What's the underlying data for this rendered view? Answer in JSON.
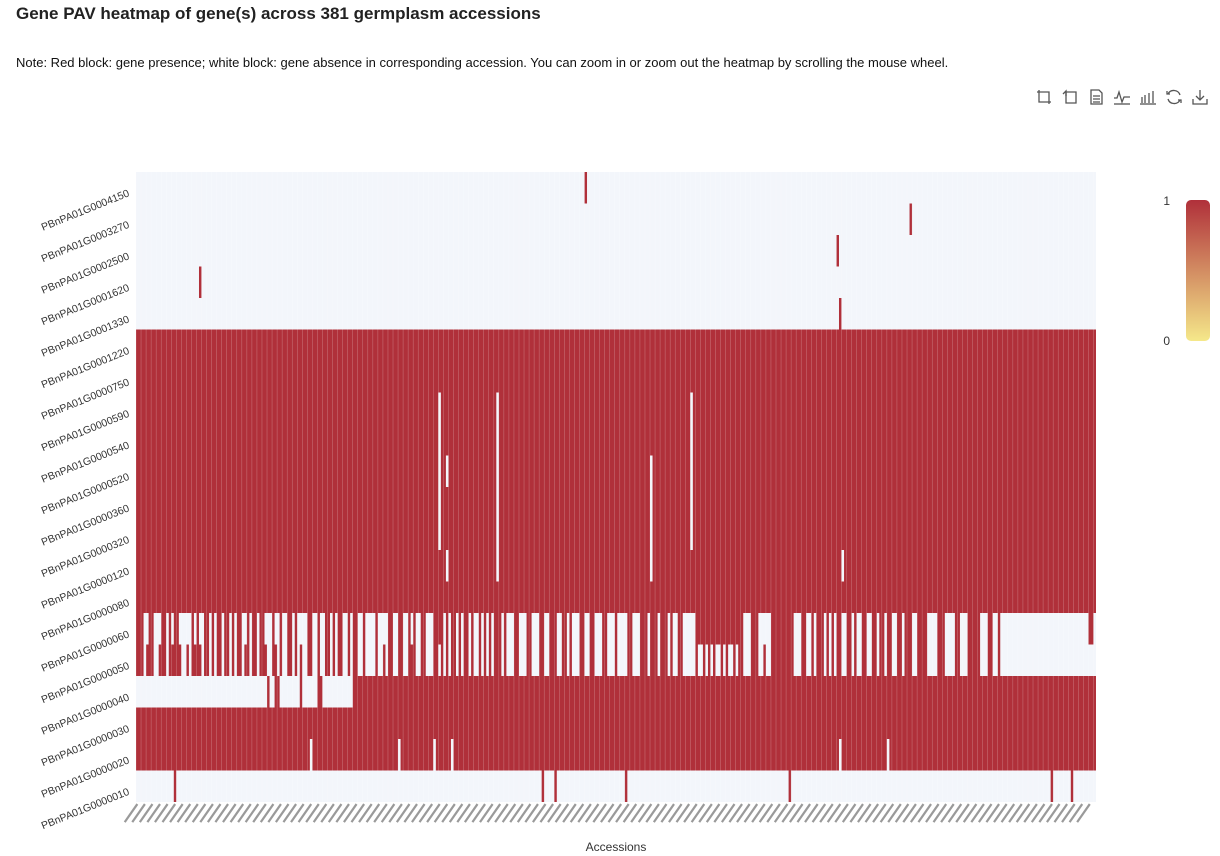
{
  "title": "Gene PAV heatmap of gene(s) across 381 germplasm accessions",
  "note": "Note: Red block: gene presence; white block: gene absence in corresponding accession. You can zoom in or zoom out the heatmap by scrolling the mouse wheel.",
  "toolbox": [
    {
      "name": "zoom-icon"
    },
    {
      "name": "zoom-reset-icon"
    },
    {
      "name": "data-view-icon"
    },
    {
      "name": "line-chart-icon"
    },
    {
      "name": "bar-chart-icon"
    },
    {
      "name": "restore-icon"
    },
    {
      "name": "download-icon"
    }
  ],
  "colors": {
    "presence": "#b0303a",
    "absence": "#f3f6fb",
    "legend_high": "#b0303a",
    "legend_low": "#f5e88a"
  },
  "chart_data": {
    "type": "heatmap",
    "xlabel": "Accessions",
    "ylabel": "",
    "n_accessions": 381,
    "genes": [
      "PBnPA01G0004150",
      "PBnPA01G0003270",
      "PBnPA01G0002500",
      "PBnPA01G0001620",
      "PBnPA01G0001330",
      "PBnPA01G0001220",
      "PBnPA01G0000750",
      "PBnPA01G0000590",
      "PBnPA01G0000540",
      "PBnPA01G0000520",
      "PBnPA01G0000360",
      "PBnPA01G0000320",
      "PBnPA01G0000120",
      "PBnPA01G0000080",
      "PBnPA01G0000060",
      "PBnPA01G0000050",
      "PBnPA01G0000040",
      "PBnPA01G0000030",
      "PBnPA01G0000020",
      "PBnPA01G0000010"
    ],
    "legend": {
      "max": 1,
      "min": 0
    },
    "rows": [
      {
        "gene": "PBnPA01G0004150",
        "default": 0,
        "exceptions": [
          178
        ]
      },
      {
        "gene": "PBnPA01G0003270",
        "default": 0,
        "exceptions": [
          307
        ]
      },
      {
        "gene": "PBnPA01G0002500",
        "default": 0,
        "exceptions": [
          278
        ]
      },
      {
        "gene": "PBnPA01G0001620",
        "default": 0,
        "exceptions": [
          25
        ]
      },
      {
        "gene": "PBnPA01G0001330",
        "default": 0,
        "exceptions": [
          279
        ]
      },
      {
        "gene": "PBnPA01G0001220",
        "default": 1,
        "exceptions": []
      },
      {
        "gene": "PBnPA01G0000750",
        "default": 1,
        "exceptions": []
      },
      {
        "gene": "PBnPA01G0000590",
        "default": 1,
        "exceptions": [
          120,
          143,
          220
        ]
      },
      {
        "gene": "PBnPA01G0000540",
        "default": 1,
        "exceptions": [
          120,
          143,
          220
        ]
      },
      {
        "gene": "PBnPA01G0000520",
        "default": 1,
        "exceptions": [
          120,
          123,
          143,
          204,
          220
        ]
      },
      {
        "gene": "PBnPA01G0000360",
        "default": 1,
        "exceptions": [
          120,
          143,
          204,
          220
        ]
      },
      {
        "gene": "PBnPA01G0000320",
        "default": 1,
        "exceptions": [
          120,
          143,
          204,
          220
        ]
      },
      {
        "gene": "PBnPA01G0000120",
        "default": 1,
        "exceptions": [
          123,
          143,
          204,
          280
        ]
      },
      {
        "gene": "PBnPA01G0000080",
        "default": 1,
        "exceptions": []
      },
      {
        "gene": "PBnPA01G0000060",
        "default": 0,
        "exceptions": [
          0,
          1,
          2,
          5,
          6,
          10,
          11,
          13,
          15,
          16,
          22,
          24,
          27,
          28,
          30,
          32,
          33,
          35,
          36,
          38,
          40,
          41,
          44,
          46,
          47,
          49,
          50,
          54,
          57,
          60,
          61,
          63,
          68,
          69,
          72,
          75,
          76,
          78,
          80,
          81,
          84,
          86,
          87,
          90,
          95,
          100,
          101,
          104,
          105,
          108,
          110,
          113,
          114,
          118,
          119,
          120,
          121,
          123,
          125,
          126,
          128,
          130,
          131,
          133,
          136,
          138,
          140,
          142,
          143,
          144,
          146,
          150,
          151,
          155,
          156,
          160,
          161,
          164,
          165,
          166,
          169,
          170,
          172,
          176,
          177,
          180,
          181,
          185,
          186,
          190,
          195,
          196,
          200,
          201,
          202,
          204,
          205,
          206,
          208,
          209,
          210,
          212,
          215,
          216,
          222,
          223,
          224,
          225,
          226,
          227,
          228,
          229,
          230,
          231,
          232,
          233,
          234,
          235,
          236,
          237,
          238,
          239,
          240,
          244,
          245,
          246,
          252,
          253,
          254,
          255,
          256,
          257,
          258,
          259,
          260,
          264,
          265,
          268,
          270,
          271,
          272,
          274,
          276,
          278,
          279,
          282,
          283,
          285,
          288,
          289,
          292,
          293,
          295,
          296,
          298,
          299,
          302,
          303,
          305,
          306,
          307,
          310,
          311,
          312,
          313,
          318,
          319,
          320,
          325,
          326,
          330,
          331,
          332,
          333,
          334,
          338,
          339,
          342,
          378,
          379
        ]
      },
      {
        "gene": "PBnPA01G0000050",
        "default": 1,
        "exceptions": [
          3,
          7,
          8,
          12,
          18,
          19,
          21,
          26,
          29,
          31,
          34,
          37,
          39,
          42,
          45,
          48,
          52,
          53,
          56,
          58,
          59,
          62,
          64,
          66,
          67,
          70,
          71,
          73,
          74,
          77,
          79,
          82,
          83,
          85,
          88,
          89,
          91,
          92,
          93,
          94,
          96,
          97,
          99,
          102,
          103,
          106,
          107,
          111,
          112,
          115,
          116,
          117,
          120,
          122,
          124,
          127,
          129,
          132,
          134,
          135,
          137,
          139,
          141,
          145,
          147,
          148,
          149,
          152,
          153,
          154,
          157,
          158,
          159,
          162,
          163,
          167,
          168,
          171,
          173,
          174,
          175,
          178,
          179,
          182,
          183,
          184,
          187,
          188,
          189,
          191,
          192,
          193,
          194,
          197,
          198,
          199,
          203,
          207,
          211,
          213,
          214,
          217,
          218,
          219,
          220,
          221,
          223,
          224,
          226,
          228,
          230,
          231,
          233,
          235,
          236,
          238,
          241,
          242,
          243,
          247,
          248,
          250,
          251,
          261,
          262,
          263,
          266,
          267,
          269,
          273,
          275,
          277,
          280,
          281,
          284,
          286,
          287,
          290,
          291,
          294,
          297,
          300,
          301,
          304,
          308,
          309,
          314,
          315,
          316,
          317,
          321,
          322,
          323,
          324,
          327,
          328,
          329,
          335,
          336,
          337,
          340,
          341,
          343,
          344,
          345,
          346,
          347,
          348,
          349,
          350,
          351,
          352,
          353,
          354,
          355,
          356,
          357,
          358,
          359,
          360,
          361,
          362,
          363,
          364,
          365,
          366,
          367,
          368,
          369,
          370,
          371,
          372,
          373,
          374,
          375,
          376,
          377,
          378,
          379,
          380
        ]
      },
      {
        "gene": "PBnPA01G0000040",
        "default": 0,
        "exceptions": [
          52,
          55,
          56,
          65,
          72,
          73,
          86,
          87,
          88,
          89,
          90,
          91,
          92,
          93,
          94,
          95,
          96,
          97,
          98,
          99,
          100,
          101,
          102,
          103,
          104,
          105,
          106,
          107,
          108,
          109,
          110,
          111,
          112,
          113,
          114,
          115,
          116,
          117,
          118,
          119,
          120,
          121,
          122,
          123,
          124,
          125,
          126,
          127,
          128,
          129,
          130,
          131,
          132,
          133,
          134,
          135,
          136,
          137,
          138,
          139,
          140,
          141,
          142,
          143,
          144,
          145,
          146,
          147,
          148,
          149,
          150,
          151,
          152,
          153,
          154,
          155,
          156,
          157,
          158,
          159,
          160,
          161,
          162,
          163,
          164,
          165,
          166,
          167,
          168,
          169,
          170,
          171,
          172,
          173,
          174,
          175,
          176,
          177,
          178,
          179,
          180,
          181,
          182,
          183,
          184,
          185,
          186,
          187,
          188,
          189,
          190,
          191,
          192,
          193,
          194,
          195,
          196,
          197,
          198,
          199,
          200,
          201,
          202,
          203,
          204,
          205,
          206,
          207,
          208,
          209,
          210,
          211,
          212,
          213,
          214,
          215,
          216,
          217,
          218,
          219,
          220,
          221,
          222,
          223,
          224,
          225,
          226,
          227,
          228,
          229,
          230,
          231,
          232,
          233,
          234,
          235,
          236,
          237,
          238,
          239,
          240,
          241,
          242,
          243,
          244,
          245,
          246,
          247,
          248,
          249,
          250,
          251,
          252,
          253,
          254,
          255,
          256,
          257,
          258,
          259,
          260,
          261,
          262,
          263,
          264,
          265,
          266,
          267,
          268,
          269,
          270,
          271,
          272,
          273,
          274,
          275,
          276,
          277,
          278,
          279,
          280,
          281,
          282,
          283,
          284,
          285,
          286,
          287,
          288,
          289,
          290,
          291,
          292,
          293,
          294,
          295,
          296,
          297,
          298,
          299,
          300,
          301,
          302,
          303,
          304,
          305,
          306,
          307,
          308,
          309,
          310,
          311,
          312,
          313,
          314,
          315,
          316,
          317,
          318,
          319,
          320,
          321,
          322,
          323,
          324,
          325,
          326,
          327,
          328,
          329,
          330,
          331,
          332,
          333,
          334,
          335,
          336,
          337,
          338,
          339,
          340,
          341,
          342,
          343,
          344,
          345,
          346,
          347,
          348,
          349,
          350,
          351,
          352,
          353,
          354,
          355,
          356,
          357,
          358,
          359,
          360,
          361,
          362,
          363,
          364,
          365,
          366,
          367,
          368,
          369,
          370,
          371,
          372,
          373,
          374,
          375,
          376,
          377,
          378,
          379,
          380
        ]
      },
      {
        "gene": "PBnPA01G0000030",
        "default": 1,
        "exceptions": []
      },
      {
        "gene": "PBnPA01G0000020",
        "default": 1,
        "exceptions": [
          69,
          104,
          118,
          125,
          279,
          298
        ]
      },
      {
        "gene": "PBnPA01G0000010",
        "default": 0,
        "exceptions": [
          15,
          161,
          166,
          194,
          259,
          363,
          371
        ]
      }
    ]
  }
}
